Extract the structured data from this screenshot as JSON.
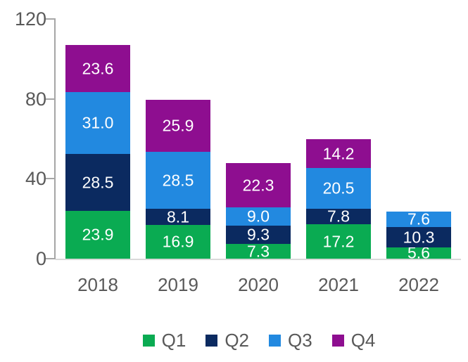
{
  "chart_data": {
    "type": "bar",
    "stacked": true,
    "title": "",
    "xlabel": "",
    "ylabel": "",
    "categories": [
      "2018",
      "2019",
      "2020",
      "2021",
      "2022"
    ],
    "series": [
      {
        "name": "Q1",
        "color": "#0aab52",
        "values": [
          23.9,
          16.9,
          7.3,
          17.2,
          5.6
        ]
      },
      {
        "name": "Q2",
        "color": "#0b2a60",
        "values": [
          28.5,
          8.1,
          9.3,
          7.8,
          10.3
        ]
      },
      {
        "name": "Q3",
        "color": "#2289e0",
        "values": [
          31.0,
          28.5,
          9.0,
          20.5,
          7.6
        ]
      },
      {
        "name": "Q4",
        "color": "#8e0e90",
        "values": [
          23.6,
          25.9,
          22.3,
          14.2,
          0
        ]
      }
    ],
    "totals": [
      107.0,
      79.4,
      47.9,
      59.7,
      23.5
    ],
    "y_ticks": [
      0,
      40,
      80,
      120
    ],
    "ylim": [
      0,
      120
    ],
    "grid": false,
    "value_labels": true,
    "value_label_decimals": 1,
    "legend_position": "bottom",
    "colors": {
      "axis_text": "#595959",
      "axis_line": "#a6a6a6",
      "baseline": "#d9d9d9",
      "value_label_text": "#ffffff",
      "background": "#ffffff"
    }
  }
}
